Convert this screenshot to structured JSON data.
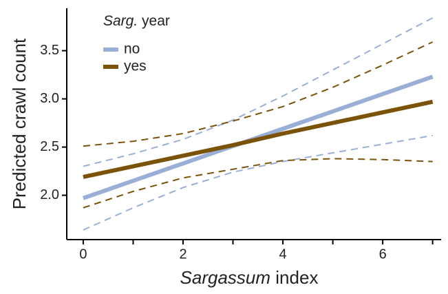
{
  "chart_data": {
    "type": "line",
    "xlabel": [
      "Sargassum",
      "index"
    ],
    "ylabel": "Predicted crawl count",
    "legend_title": [
      "Sarg.",
      "year"
    ],
    "x": [
      0,
      1,
      2,
      3,
      4,
      5,
      6,
      7
    ],
    "series": [
      {
        "name": "no",
        "color": "#9aafd6",
        "values": [
          1.97,
          2.15,
          2.33,
          2.51,
          2.69,
          2.87,
          3.05,
          3.23
        ],
        "ci_upper": [
          2.3,
          2.43,
          2.58,
          2.78,
          3.03,
          3.3,
          3.57,
          3.84
        ],
        "ci_lower": [
          1.64,
          1.87,
          2.08,
          2.24,
          2.35,
          2.44,
          2.53,
          2.62
        ]
      },
      {
        "name": "yes",
        "color": "#7a5309",
        "values": [
          2.19,
          2.3,
          2.41,
          2.52,
          2.64,
          2.75,
          2.86,
          2.97
        ],
        "ci_upper": [
          2.51,
          2.56,
          2.64,
          2.77,
          2.92,
          3.12,
          3.35,
          3.59
        ],
        "ci_lower": [
          1.87,
          2.04,
          2.18,
          2.27,
          2.36,
          2.38,
          2.37,
          2.35
        ]
      }
    ],
    "xlim": [
      -0.33,
      7.17
    ],
    "ylim": [
      1.54,
      3.94
    ],
    "xticks": [
      0,
      2,
      4,
      6
    ],
    "xminorticks": [
      1,
      3,
      5,
      7
    ],
    "yticks": [
      {
        "value": 2,
        "label": "2.0"
      },
      {
        "value": 2.5,
        "label": "2.5"
      },
      {
        "value": 3,
        "label": "3.0"
      },
      {
        "value": 3.5,
        "label": "3.5"
      }
    ],
    "legend": "top-left"
  }
}
